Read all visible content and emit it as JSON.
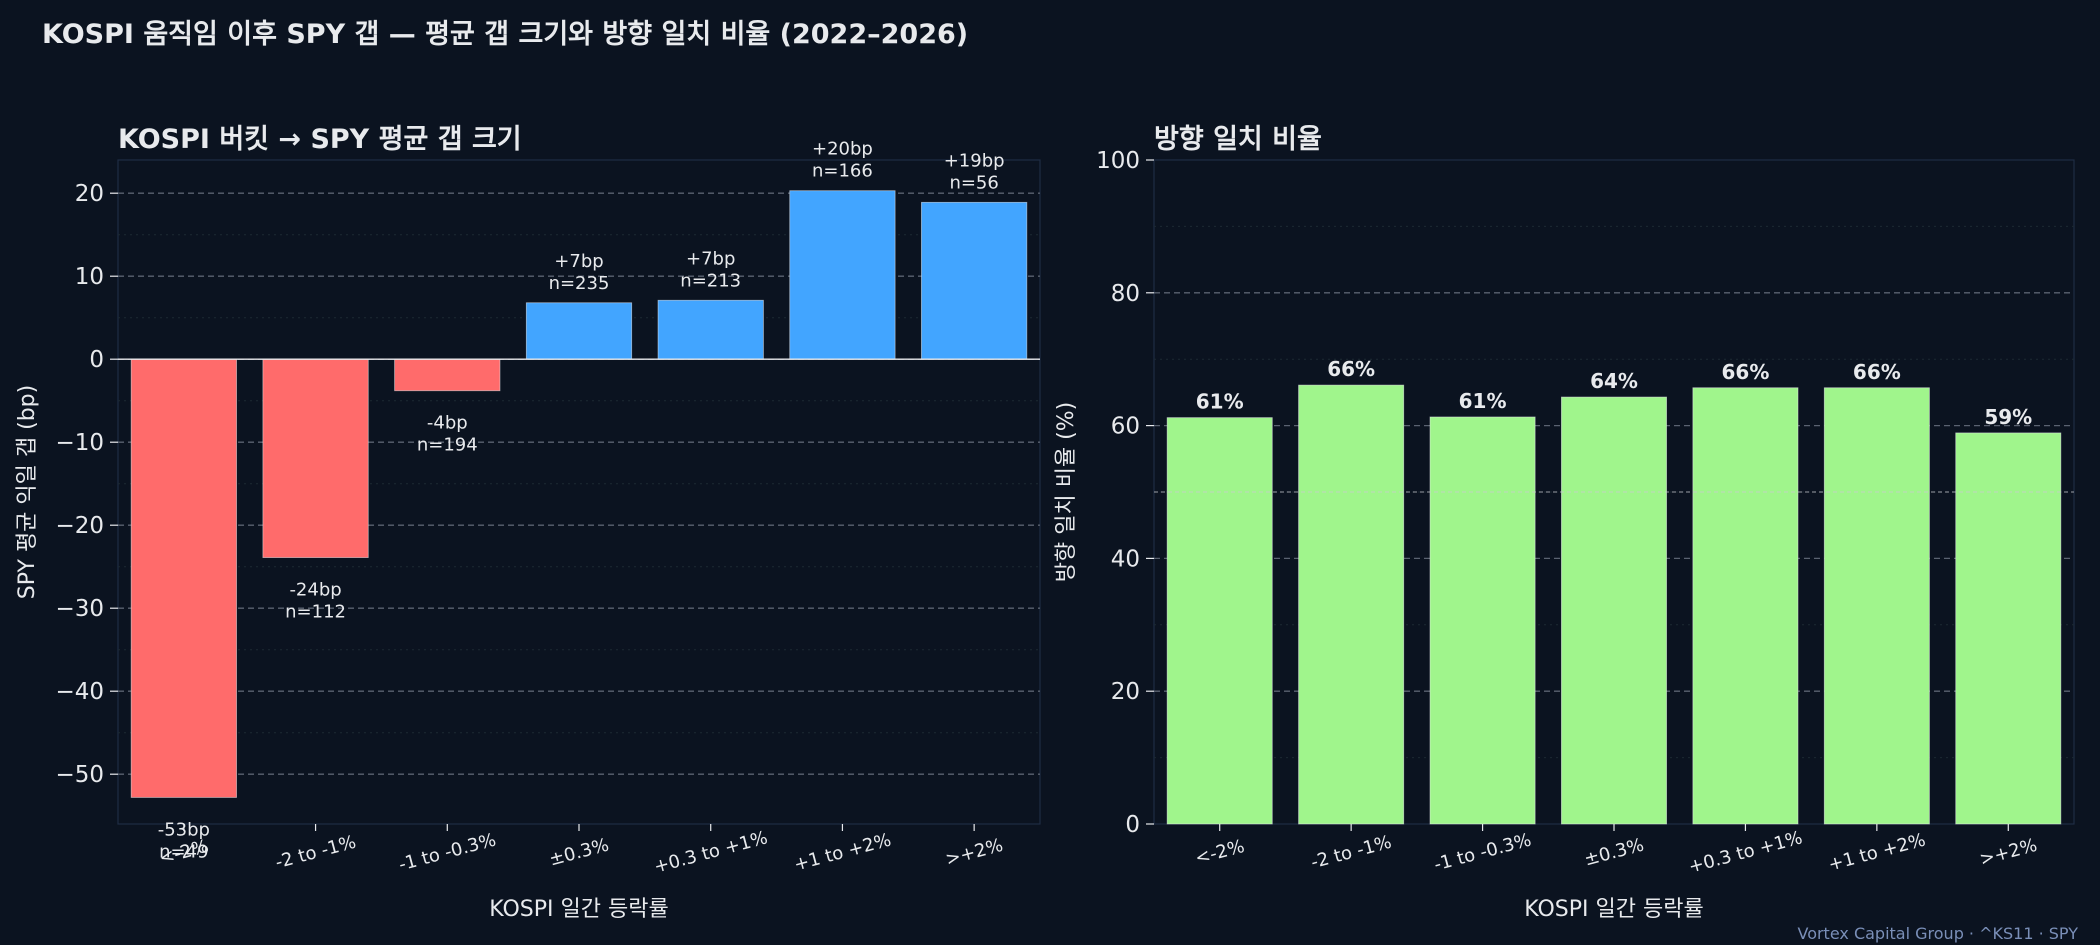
{
  "title": "KOSPI 움직임 이후 SPY 갭 — 평균 갭 크기와 방향 일치 비율 (2022–2026)",
  "footer": "Vortex Capital Group  ·  ^KS11 · SPY",
  "colors": {
    "background": "#0b1320",
    "negative": "#ff6b6b",
    "positive": "#42a5ff",
    "hitrate": "#a0f58c",
    "text": "#e8eaed",
    "footer": "#7a8fb8"
  },
  "chart_data": [
    {
      "type": "bar",
      "title": "KOSPI 버킷 → SPY 평균 갭 크기",
      "xlabel": "KOSPI 일간 등락률",
      "ylabel": "SPY 평균 익일 갭 (bp)",
      "categories": [
        "<-2%",
        "-2 to -1%",
        "-1 to -0.3%",
        "±0.3%",
        "+0.3 to +1%",
        "+1 to +2%",
        ">+2%"
      ],
      "values": [
        -52.8,
        -23.9,
        -3.8,
        6.8,
        7.1,
        20.3,
        18.9
      ],
      "labels": [
        "-53bp",
        "-24bp",
        "-4bp",
        "+7bp",
        "+7bp",
        "+20bp",
        "+19bp"
      ],
      "counts": [
        "n=49",
        "n=112",
        "n=194",
        "n=235",
        "n=213",
        "n=166",
        "n=56"
      ],
      "ylim": [
        -56,
        24
      ],
      "yticks": [
        20,
        10,
        0,
        -10,
        -20,
        -30,
        -40,
        -50
      ],
      "ytick_labels": [
        "20",
        "10",
        "0",
        "−10",
        "−20",
        "−30",
        "−40",
        "−50"
      ],
      "grid": true
    },
    {
      "type": "bar",
      "title": "방향 일치 비율",
      "xlabel": "KOSPI 일간 등락률",
      "ylabel": "방향 일치 비율 (%)",
      "categories": [
        "<-2%",
        "-2 to -1%",
        "-1 to -0.3%",
        "±0.3%",
        "+0.3 to +1%",
        "+1 to +2%",
        ">+2%"
      ],
      "values": [
        61.2,
        66.1,
        61.3,
        64.3,
        65.7,
        65.7,
        58.9
      ],
      "labels": [
        "61%",
        "66%",
        "61%",
        "64%",
        "66%",
        "66%",
        "59%"
      ],
      "ylim": [
        0,
        100
      ],
      "yticks": [
        0,
        20,
        40,
        60,
        80,
        100
      ],
      "ytick_labels": [
        "0",
        "20",
        "40",
        "60",
        "80",
        "100"
      ],
      "reference_line": 50,
      "grid": true
    }
  ]
}
